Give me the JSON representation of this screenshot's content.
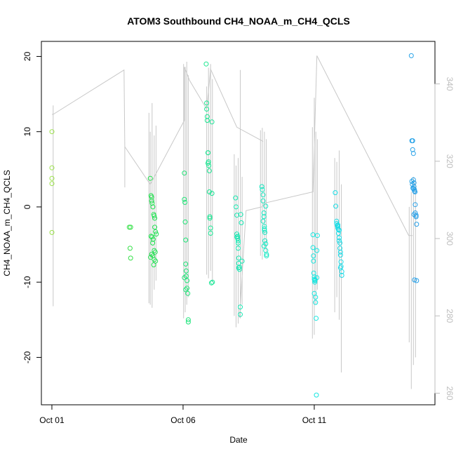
{
  "chart_data": {
    "type": "scatter",
    "title": "ATOM3 Southbound CH4_NOAA_m_CH4_QCLS",
    "xlabel": "Date",
    "ylabel": "CH4_NOAA_m_CH4_QCLS",
    "x_ticks": [
      {
        "day": 1,
        "label": "Oct 01"
      },
      {
        "day": 6,
        "label": "Oct 06"
      },
      {
        "day": 11,
        "label": "Oct 11"
      }
    ],
    "xlim": [
      0.6,
      15.6
    ],
    "ylim_left": [
      -26.3,
      22
    ],
    "y_ticks_left": [
      -20,
      -10,
      0,
      10,
      20
    ],
    "ylim_right": [
      257,
      351
    ],
    "y_ticks_right": [
      260,
      280,
      300,
      320,
      340
    ],
    "grid": false,
    "colors": {
      "axis": "#000000",
      "right_axis": "#bdbdbd",
      "profile_line": "#c8c8c8",
      "point_gradient": [
        "#9be14a",
        "#22e045",
        "#18e8b0",
        "#17e6e6",
        "#2aa0e8"
      ]
    },
    "series": [
      {
        "x": [
          1.0,
          1.0,
          1.0,
          1.0,
          1.0
        ],
        "y": [
          10.0,
          5.2,
          3.8,
          3.1,
          -3.4
        ]
      },
      {
        "x": [
          3.95,
          3.98,
          4.0,
          4.0
        ],
        "y": [
          -2.7,
          -5.5,
          -6.8,
          -2.7
        ]
      },
      {
        "x": [
          4.75,
          4.78,
          4.8,
          4.82,
          4.85,
          4.88,
          4.9,
          4.92,
          4.95,
          4.98,
          4.78,
          4.82,
          4.86,
          4.9,
          4.94,
          4.8,
          4.85,
          4.9,
          4.95,
          4.88,
          4.92,
          4.84,
          4.8,
          4.76
        ],
        "y": [
          3.8,
          1.5,
          1.3,
          0.5,
          0.0,
          -1.0,
          -1.2,
          -2.7,
          -3.3,
          -3.6,
          -3.9,
          -4.0,
          -4.3,
          -5.8,
          -6.0,
          -6.3,
          -6.5,
          -7.0,
          -7.2,
          -7.7,
          -1.5,
          -4.8,
          0.8,
          -6.7
        ]
      },
      {
        "x": [
          6.05,
          6.05,
          6.07,
          6.08,
          6.1,
          6.1,
          6.12,
          6.12,
          6.15,
          6.15,
          6.18,
          6.2,
          6.2,
          6.05,
          6.1
        ],
        "y": [
          4.5,
          1.0,
          0.6,
          -2.0,
          -4.4,
          -7.6,
          -8.5,
          -9.2,
          -9.8,
          -10.8,
          -11.5,
          -15.0,
          -15.3,
          -9.4,
          -11.0
        ]
      },
      {
        "x": [
          6.88,
          6.9,
          6.9,
          6.92,
          6.92,
          6.95,
          6.95,
          6.97,
          6.98,
          7.0,
          7.0,
          7.02,
          7.02,
          7.05,
          7.05,
          7.08,
          7.1,
          7.1,
          7.12,
          6.95
        ],
        "y": [
          19.0,
          13.8,
          13.0,
          12.0,
          11.5,
          7.2,
          7.2,
          6.0,
          5.5,
          4.8,
          2.0,
          -1.3,
          -1.5,
          -2.8,
          -3.5,
          -10.1,
          11.3,
          1.8,
          -10.0,
          5.8
        ]
      },
      {
        "x": [
          8.0,
          8.02,
          8.05,
          8.05,
          8.08,
          8.08,
          8.1,
          8.1,
          8.12,
          8.12,
          8.15,
          8.15,
          8.18,
          8.18,
          8.2,
          8.22,
          8.25,
          8.05,
          8.1,
          8.12
        ],
        "y": [
          1.2,
          0.0,
          -1.1,
          -3.6,
          -3.9,
          -4.2,
          -4.5,
          -4.8,
          -6.8,
          -7.5,
          -8.0,
          -8.3,
          -13.3,
          -14.3,
          -1.0,
          -2.1,
          -7.2,
          -4.0,
          -5.5,
          -8.1
        ]
      },
      {
        "x": [
          9.0,
          9.02,
          9.05,
          9.05,
          9.08,
          9.08,
          9.1,
          9.1,
          9.12,
          9.12,
          9.15,
          9.15,
          9.18,
          9.18,
          9.05,
          9.1,
          9.15,
          9.08
        ],
        "y": [
          2.7,
          2.3,
          1.6,
          0.8,
          -0.8,
          -1.3,
          -2.6,
          -2.9,
          -3.4,
          -4.5,
          -4.9,
          -5.8,
          -6.3,
          -6.5,
          -1.9,
          -3.1,
          0.1,
          -5.2
        ]
      },
      {
        "x": [
          10.95,
          10.95,
          10.97,
          10.98,
          11.0,
          11.0,
          11.02,
          11.02,
          11.05,
          11.05,
          11.07,
          11.08,
          11.1,
          11.1,
          11.12,
          10.97,
          11.0,
          11.03
        ],
        "y": [
          -3.7,
          -5.4,
          -6.5,
          -8.8,
          -9.3,
          -9.6,
          -9.8,
          -10.0,
          -12.0,
          -12.7,
          -14.8,
          -25.0,
          -5.8,
          -9.4,
          -3.8,
          -7.2,
          -11.5,
          -9.7
        ]
      },
      {
        "x": [
          11.8,
          11.82,
          11.85,
          11.88,
          11.9,
          11.9,
          11.92,
          11.92,
          11.95,
          11.95,
          11.98,
          12.0,
          12.0,
          12.02,
          12.02,
          12.05,
          12.05,
          11.85,
          11.9,
          11.95,
          11.98,
          12.0
        ],
        "y": [
          1.9,
          0.1,
          -1.9,
          -2.5,
          -2.6,
          -2.8,
          -3.0,
          -3.5,
          -4.1,
          -4.5,
          -5.5,
          -6.0,
          -6.4,
          -7.3,
          -7.9,
          -8.6,
          -9.1,
          -2.2,
          -2.4,
          -3.1,
          -4.8,
          -8.1
        ]
      },
      {
        "x": [
          14.7,
          14.72,
          14.75,
          14.75,
          14.78,
          14.78,
          14.8,
          14.8,
          14.82,
          14.82,
          14.85,
          14.85,
          14.88,
          14.88,
          14.9,
          14.9,
          14.72,
          14.76,
          14.8,
          14.84,
          14.88,
          14.74,
          14.78,
          14.82
        ],
        "y": [
          20.1,
          8.8,
          8.8,
          7.6,
          7.1,
          3.6,
          3.2,
          2.7,
          2.3,
          2.1,
          0.3,
          -0.8,
          -1.1,
          -1.3,
          -2.3,
          -9.8,
          3.4,
          2.5,
          -1.0,
          2.0,
          -1.3,
          3.0,
          2.4,
          -9.7
        ]
      }
    ],
    "profile_lines": [
      {
        "x": [
          1.0,
          1.05,
          3.75,
          3.78,
          4.75
        ],
        "y": [
          12.3,
          12.3,
          18.2,
          8.0,
          3.0
        ]
      },
      {
        "x": [
          4.75,
          6.05,
          6.05,
          6.25,
          6.9,
          7.05,
          8.05,
          9.0,
          9.05
        ],
        "y": [
          3.0,
          11.5,
          18.6,
          16.8,
          13.0,
          18.3,
          10.6,
          8.8,
          8.7
        ]
      },
      {
        "x": [
          8.15,
          8.4,
          9.0,
          9.1,
          10.95,
          11.1,
          14.6,
          14.75
        ],
        "y": [
          -14.7,
          -0.5,
          0.0,
          0.5,
          2.0,
          20.1,
          -3.8,
          -3.8
        ]
      }
    ],
    "profile_spikes": [
      {
        "x": 1.05,
        "y_top": 13.5,
        "y_bottom": -13.2
      },
      {
        "x": 3.78,
        "y_top": 8.0,
        "y_bottom": 2.6
      },
      {
        "x": 4.7,
        "y_top": 12.5,
        "y_bottom": -12.8
      },
      {
        "x": 4.75,
        "y_top": 10.0,
        "y_bottom": -13.0
      },
      {
        "x": 4.82,
        "y_top": 13.8,
        "y_bottom": -13.4
      },
      {
        "x": 4.9,
        "y_top": 9.5,
        "y_bottom": -11.0
      },
      {
        "x": 4.97,
        "y_top": 10.8,
        "y_bottom": -9.8
      },
      {
        "x": 6.02,
        "y_top": 19.0,
        "y_bottom": -14.8
      },
      {
        "x": 6.08,
        "y_top": 18.6,
        "y_bottom": -14.0
      },
      {
        "x": 6.14,
        "y_top": 19.3,
        "y_bottom": -13.0
      },
      {
        "x": 6.2,
        "y_top": 17.5,
        "y_bottom": -12.0
      },
      {
        "x": 6.9,
        "y_top": 16.0,
        "y_bottom": -9.0
      },
      {
        "x": 6.97,
        "y_top": 18.5,
        "y_bottom": -9.5
      },
      {
        "x": 7.05,
        "y_top": 19.0,
        "y_bottom": -8.5
      },
      {
        "x": 7.12,
        "y_top": 17.0,
        "y_bottom": -10.0
      },
      {
        "x": 7.95,
        "y_top": 7.0,
        "y_bottom": -14.5
      },
      {
        "x": 8.02,
        "y_top": 5.5,
        "y_bottom": -16.0
      },
      {
        "x": 8.1,
        "y_top": 6.5,
        "y_bottom": -15.5
      },
      {
        "x": 8.18,
        "y_top": 18.2,
        "y_bottom": -14.8
      },
      {
        "x": 8.25,
        "y_top": 4.0,
        "y_bottom": -13.0
      },
      {
        "x": 8.95,
        "y_top": 10.2,
        "y_bottom": -6.5
      },
      {
        "x": 9.02,
        "y_top": 10.5,
        "y_bottom": -7.0
      },
      {
        "x": 9.1,
        "y_top": 10.0,
        "y_bottom": -5.5
      },
      {
        "x": 9.17,
        "y_top": 9.0,
        "y_bottom": -6.0
      },
      {
        "x": 10.93,
        "y_top": 10.6,
        "y_bottom": -17.5
      },
      {
        "x": 11.0,
        "y_top": 14.5,
        "y_bottom": -17.0
      },
      {
        "x": 11.06,
        "y_top": 10.0,
        "y_bottom": -13.0
      },
      {
        "x": 11.12,
        "y_top": 9.0,
        "y_bottom": -11.0
      },
      {
        "x": 11.78,
        "y_top": 6.5,
        "y_bottom": -14.0
      },
      {
        "x": 11.86,
        "y_top": 6.0,
        "y_bottom": -12.0
      },
      {
        "x": 11.95,
        "y_top": 7.5,
        "y_bottom": -15.0
      },
      {
        "x": 12.03,
        "y_top": 3.0,
        "y_bottom": -22.0
      },
      {
        "x": 14.62,
        "y_top": 0.0,
        "y_bottom": -18.0
      },
      {
        "x": 14.7,
        "y_top": 2.0,
        "y_bottom": -24.2
      },
      {
        "x": 14.78,
        "y_top": 4.0,
        "y_bottom": -21.0
      },
      {
        "x": 14.86,
        "y_top": 3.5,
        "y_bottom": -20.0
      }
    ]
  }
}
